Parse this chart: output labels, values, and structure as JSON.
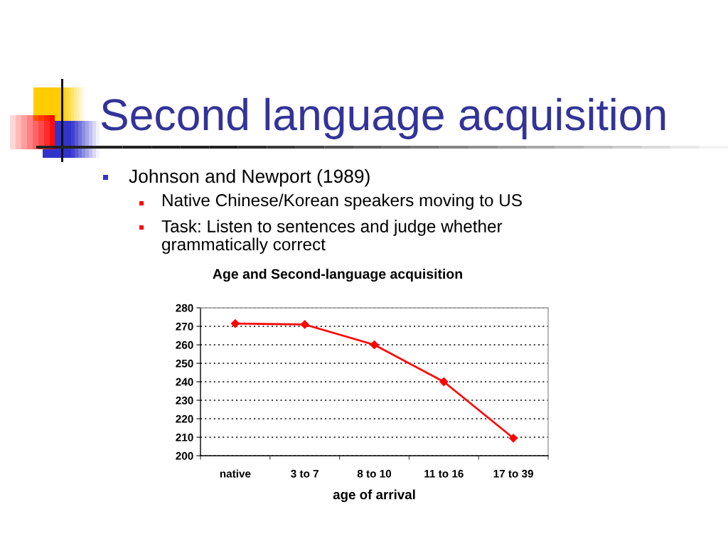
{
  "chart_data": {
    "type": "line",
    "title": "Second language acquisition",
    "subtitle": "Age and Second-language acquisition",
    "annotations": [
      "Johnson and Newport (1989)",
      "Native Chinese/Korean speakers moving to US",
      "Task: Listen to sentences and judge whether\ngrammatically correct"
    ],
    "xlabel": "age of arrival",
    "categories": [
      "native",
      "3 to 7",
      "8 to 10",
      "11 to 16",
      "17 to 39"
    ],
    "series": [
      {
        "color": "#ff0000",
        "values": [
          271.5,
          271,
          260,
          240,
          209.5
        ]
      }
    ],
    "ylim": [
      200,
      280
    ],
    "yticks": [
      200,
      210,
      220,
      230,
      240,
      250,
      260,
      270,
      280
    ],
    "grid": "y",
    "marker": "diamond",
    "line_style": "solid"
  }
}
